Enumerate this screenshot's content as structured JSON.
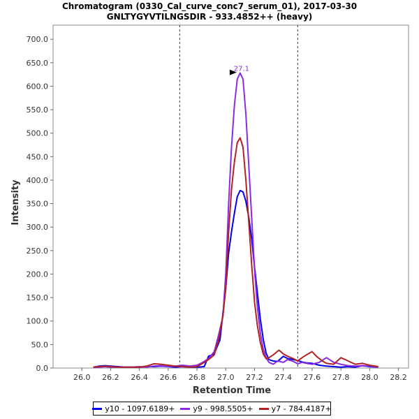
{
  "title": "Chromatogram (0330_Cal_curve_conc7_serum_01), 2017-03-30",
  "subtitle": "GNLTYGYVTILNGSDIR - 933.4852++ (heavy)",
  "chart_data": {
    "type": "line",
    "title": "Chromatogram (0330_Cal_curve_conc7_serum_01), 2017-03-30",
    "subtitle": "GNLTYGYVTILNGSDIR - 933.4852++ (heavy)",
    "xlabel": "Retention Time",
    "ylabel": "Intensity",
    "xlim": [
      25.8,
      28.27
    ],
    "ylim": [
      0,
      730
    ],
    "xticks": [
      26.0,
      26.2,
      26.4,
      26.6,
      26.8,
      27.0,
      27.2,
      27.4,
      27.6,
      27.8,
      28.0,
      28.2
    ],
    "xtick_labels": [
      "26.0",
      "26.2",
      "26.4",
      "26.6",
      "26.8",
      "27.0",
      "27.2",
      "27.4",
      "27.6",
      "27.8",
      "28.0",
      "28.2"
    ],
    "yticks": [
      0,
      50,
      100,
      150,
      200,
      250,
      300,
      350,
      400,
      450,
      500,
      550,
      600,
      650,
      700
    ],
    "ytick_labels": [
      "0.0",
      "50.0",
      "100.0",
      "150.0",
      "200.0",
      "250.0",
      "300.0",
      "350.0",
      "400.0",
      "450.0",
      "500.0",
      "550.0",
      "600.0",
      "650.0",
      "700.0"
    ],
    "vlines": [
      26.68,
      27.5
    ],
    "peak_annotation": {
      "label": "27.1",
      "x": 27.1,
      "y": 628
    },
    "series": [
      {
        "name": "y10 - 1097.6189+",
        "color": "#0000ee",
        "x": [
          26.08,
          26.12,
          26.16,
          26.2,
          26.25,
          26.3,
          26.35,
          26.4,
          26.45,
          26.5,
          26.55,
          26.6,
          26.65,
          26.7,
          26.75,
          26.8,
          26.85,
          26.88,
          26.92,
          26.96,
          27.0,
          27.02,
          27.04,
          27.06,
          27.08,
          27.1,
          27.12,
          27.14,
          27.16,
          27.18,
          27.2,
          27.22,
          27.24,
          27.26,
          27.28,
          27.3,
          27.33,
          27.36,
          27.4,
          27.43,
          27.47,
          27.5,
          27.53,
          27.56,
          27.6,
          27.65,
          27.7,
          27.75,
          27.8,
          27.85,
          27.9,
          27.95,
          28.0,
          28.06
        ],
        "y": [
          2,
          4,
          5,
          4,
          3,
          2,
          2,
          2,
          3,
          3,
          4,
          3,
          2,
          3,
          2,
          2,
          3,
          25,
          30,
          60,
          170,
          245,
          290,
          330,
          365,
          378,
          375,
          355,
          320,
          275,
          215,
          160,
          105,
          62,
          32,
          18,
          15,
          14,
          25,
          20,
          18,
          16,
          13,
          11,
          10,
          6,
          4,
          3,
          2,
          3,
          2,
          5,
          3,
          2
        ]
      },
      {
        "name": "y9 - 998.5505+",
        "color": "#8a2be2",
        "x": [
          26.08,
          26.12,
          26.16,
          26.2,
          26.25,
          26.3,
          26.35,
          26.4,
          26.45,
          26.5,
          26.55,
          26.6,
          26.65,
          26.7,
          26.75,
          26.8,
          26.84,
          26.88,
          26.92,
          26.95,
          26.98,
          27.0,
          27.02,
          27.04,
          27.06,
          27.08,
          27.1,
          27.12,
          27.14,
          27.16,
          27.18,
          27.2,
          27.22,
          27.24,
          27.26,
          27.28,
          27.3,
          27.33,
          27.36,
          27.4,
          27.43,
          27.47,
          27.5,
          27.53,
          27.56,
          27.6,
          27.65,
          27.7,
          27.75,
          27.8,
          27.85,
          27.9,
          27.95,
          28.0,
          28.06
        ],
        "y": [
          1,
          2,
          3,
          2,
          2,
          2,
          2,
          3,
          2,
          4,
          5,
          3,
          4,
          6,
          4,
          6,
          12,
          20,
          35,
          70,
          110,
          200,
          350,
          470,
          560,
          615,
          628,
          615,
          540,
          430,
          320,
          210,
          130,
          75,
          40,
          22,
          12,
          8,
          15,
          12,
          18,
          14,
          9,
          12,
          10,
          8,
          12,
          22,
          12,
          8,
          5,
          4,
          5,
          4,
          2
        ]
      },
      {
        "name": "y7 - 784.4187+",
        "color": "#b22222",
        "x": [
          26.08,
          26.12,
          26.16,
          26.2,
          26.25,
          26.3,
          26.35,
          26.4,
          26.45,
          26.5,
          26.55,
          26.6,
          26.65,
          26.7,
          26.75,
          26.8,
          26.84,
          26.88,
          26.92,
          26.95,
          26.98,
          27.0,
          27.02,
          27.04,
          27.06,
          27.08,
          27.1,
          27.12,
          27.14,
          27.16,
          27.18,
          27.2,
          27.22,
          27.24,
          27.26,
          27.28,
          27.3,
          27.33,
          27.37,
          27.4,
          27.43,
          27.47,
          27.5,
          27.53,
          27.56,
          27.6,
          27.63,
          27.67,
          27.7,
          27.75,
          27.8,
          27.83,
          27.87,
          27.9,
          27.95,
          28.0,
          28.06
        ],
        "y": [
          2,
          3,
          4,
          3,
          2,
          2,
          2,
          2,
          4,
          9,
          8,
          6,
          4,
          3,
          2,
          3,
          10,
          18,
          28,
          60,
          110,
          170,
          290,
          380,
          440,
          480,
          490,
          470,
          400,
          310,
          220,
          140,
          90,
          55,
          30,
          20,
          22,
          28,
          38,
          30,
          25,
          20,
          15,
          22,
          28,
          35,
          25,
          15,
          10,
          8,
          22,
          18,
          12,
          8,
          10,
          6,
          3
        ]
      }
    ]
  }
}
